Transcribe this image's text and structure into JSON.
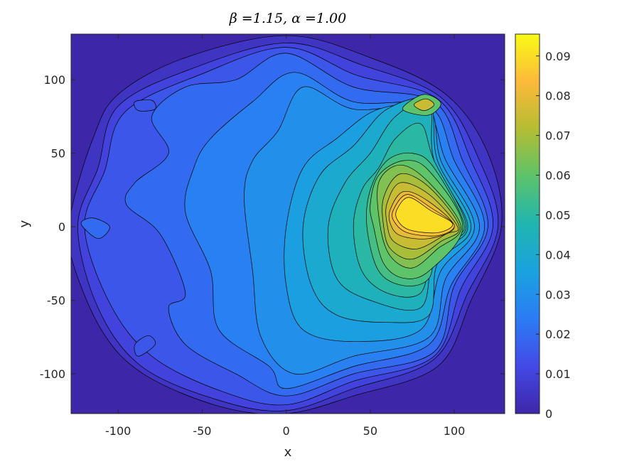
{
  "chart_data": {
    "type": "contourf",
    "title": "β =1.15, α =1.00",
    "x_label": "x",
    "y_label": "y",
    "xlim": [
      -128,
      130
    ],
    "ylim": [
      -127,
      131
    ],
    "xticks": [
      -100,
      -50,
      0,
      50,
      100
    ],
    "yticks": [
      -100,
      -50,
      0,
      50,
      100
    ],
    "clim": [
      0,
      0.0955
    ],
    "cticks": [
      0,
      0.01,
      0.02,
      0.03,
      0.04,
      0.05,
      0.06,
      0.07,
      0.08,
      0.09
    ],
    "colormap": [
      "#3e26a8",
      "#4349e6",
      "#2b7cf5",
      "#1aa2df",
      "#20b5b0",
      "#5cc36a",
      "#b4bd33",
      "#fdb93a",
      "#f9fb15"
    ],
    "contours": [
      {
        "level": 0.005,
        "x": [
          -128,
          -128,
          -110,
          -85,
          -40,
          0,
          40,
          90,
          110,
          128,
          120,
          95,
          50,
          0,
          -60,
          -100,
          -115
        ],
        "y": [
          10,
          -20,
          -70,
          -100,
          -122,
          -127,
          -115,
          -95,
          -50,
          0,
          50,
          90,
          115,
          130,
          115,
          90,
          60
        ]
      },
      {
        "level": 0.01,
        "x": [
          -124,
          -112,
          -86,
          -40,
          0,
          40,
          88,
          108,
          126,
          115,
          92,
          45,
          0,
          -55,
          -100,
          -112
        ],
        "y": [
          0,
          -55,
          -95,
          -118,
          -125,
          -110,
          -90,
          -45,
          0,
          45,
          88,
          110,
          125,
          108,
          82,
          40
        ]
      },
      {
        "level": 0.015,
        "x": [
          -120,
          -105,
          -80,
          -38,
          0,
          40,
          88,
          104,
          123,
          110,
          90,
          42,
          0,
          -50,
          -96,
          -108
        ],
        "y": [
          0,
          -52,
          -88,
          -112,
          -121,
          -105,
          -88,
          -42,
          0,
          45,
          87,
          103,
          122,
          104,
          78,
          38
        ]
      },
      {
        "level": 0.02,
        "x": [
          -95,
          -75,
          -60,
          -70,
          -60,
          -30,
          0,
          40,
          88,
          100,
          120,
          105,
          88,
          40,
          0,
          -30,
          -60,
          -80,
          -70,
          -90
        ],
        "y": [
          15,
          -5,
          -45,
          -55,
          -80,
          -100,
          -115,
          -100,
          -85,
          -40,
          0,
          45,
          85,
          95,
          118,
          100,
          95,
          75,
          50,
          30
        ]
      },
      {
        "level": 0.025,
        "x": [
          -60,
          -45,
          -40,
          -10,
          0,
          40,
          85,
          98,
          118,
          100,
          85,
          40,
          5,
          -20,
          -45,
          -55
        ],
        "y": [
          10,
          -30,
          -70,
          -95,
          -110,
          -95,
          -80,
          -40,
          0,
          45,
          82,
          85,
          105,
          85,
          60,
          40
        ]
      },
      {
        "level": 0.03,
        "x": [
          -25,
          -20,
          -15,
          5,
          40,
          85,
          95,
          115,
          95,
          82,
          40,
          10,
          -5,
          -20
        ],
        "y": [
          20,
          -30,
          -75,
          -100,
          -88,
          -75,
          -35,
          0,
          45,
          80,
          80,
          95,
          65,
          45
        ]
      },
      {
        "level": 0.035,
        "x": [
          0,
          0,
          10,
          40,
          80,
          92,
          112,
          92,
          85,
          55,
          30,
          10
        ],
        "y": [
          0,
          -40,
          -70,
          -78,
          -70,
          -30,
          0,
          45,
          80,
          80,
          60,
          40
        ]
      },
      {
        "level": 0.04,
        "x": [
          10,
          15,
          30,
          60,
          85,
          90,
          110,
          90,
          85,
          60,
          40,
          20
        ],
        "y": [
          0,
          -40,
          -60,
          -65,
          -60,
          -25,
          0,
          45,
          85,
          80,
          55,
          35
        ]
      },
      {
        "level": 0.045,
        "x": [
          25,
          30,
          50,
          80,
          88,
          108,
          88,
          85,
          65,
          50,
          35
        ],
        "y": [
          0,
          -35,
          -50,
          -55,
          -20,
          0,
          45,
          85,
          75,
          50,
          30
        ]
      },
      {
        "level": 0.05,
        "x": [
          40,
          45,
          60,
          80,
          88,
          107,
          88,
          80,
          65,
          55,
          45
        ],
        "y": [
          0,
          -30,
          -45,
          -45,
          -15,
          0,
          45,
          70,
          60,
          40,
          25
        ]
      },
      {
        "level": 0.055,
        "x": [
          48,
          55,
          70,
          85,
          90,
          106,
          88,
          75,
          60,
          50
        ],
        "y": [
          0,
          -30,
          -40,
          -35,
          -10,
          0,
          40,
          50,
          45,
          25
        ]
      },
      {
        "level": 0.06,
        "x": [
          52,
          58,
          70,
          85,
          105,
          85,
          70,
          55,
          50
        ],
        "y": [
          0,
          -25,
          -35,
          -30,
          0,
          38,
          45,
          35,
          15
        ]
      },
      {
        "level": 0.065,
        "x": [
          56,
          62,
          75,
          90,
          104,
          85,
          68,
          55
        ],
        "y": [
          0,
          -20,
          -28,
          -15,
          0,
          30,
          42,
          30
        ]
      },
      {
        "level": 0.07,
        "x": [
          58,
          62,
          75,
          92,
          103,
          85,
          68,
          58
        ],
        "y": [
          0,
          -15,
          -22,
          -10,
          0,
          27,
          36,
          20
        ]
      },
      {
        "level": 0.075,
        "x": [
          60,
          64,
          78,
          95,
          102,
          85,
          68,
          60
        ],
        "y": [
          2,
          -10,
          -15,
          -5,
          0,
          22,
          30,
          16
        ]
      },
      {
        "level": 0.08,
        "x": [
          62,
          68,
          85,
          100,
          85,
          70,
          62
        ],
        "y": [
          2,
          -6,
          -8,
          0,
          17,
          24,
          12
        ]
      },
      {
        "level": 0.085,
        "x": [
          64,
          72,
          90,
          100,
          86,
          72,
          64
        ],
        "y": [
          4,
          -4,
          -6,
          1,
          13,
          22,
          12
        ]
      },
      {
        "level": 0.09,
        "x": [
          66,
          73,
          90,
          99,
          86,
          73,
          66
        ],
        "y": [
          5,
          -2,
          -4,
          2,
          11,
          20,
          12
        ]
      },
      {
        "level": 0.02,
        "x": [
          -122,
          -112,
          -105,
          -115
        ],
        "y": [
          2,
          -8,
          0,
          6
        ]
      },
      {
        "level": 0.015,
        "x": [
          -90,
          -80,
          -78,
          -88
        ],
        "y": [
          85,
          86,
          80,
          79
        ]
      },
      {
        "level": 0.015,
        "x": [
          -90,
          -82,
          -78,
          -88
        ],
        "y": [
          -80,
          -74,
          -80,
          -88
        ]
      },
      {
        "level": 0.06,
        "x": [
          70,
          82,
          92,
          85,
          72
        ],
        "y": [
          82,
          90,
          84,
          76,
          78
        ]
      },
      {
        "level": 0.075,
        "x": [
          76,
          83,
          88,
          82
        ],
        "y": [
          83,
          87,
          83,
          79
        ]
      }
    ]
  }
}
